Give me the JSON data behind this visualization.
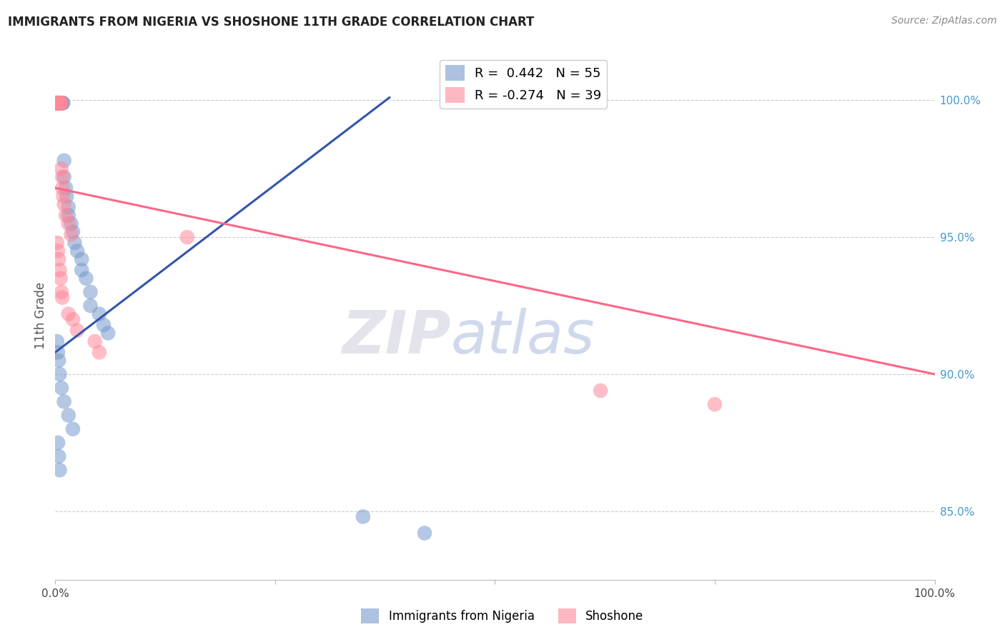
{
  "title": "IMMIGRANTS FROM NIGERIA VS SHOSHONE 11TH GRADE CORRELATION CHART",
  "source": "Source: ZipAtlas.com",
  "ylabel": "11th Grade",
  "ytick_labels": [
    "100.0%",
    "95.0%",
    "90.0%",
    "85.0%"
  ],
  "ytick_values": [
    1.0,
    0.95,
    0.9,
    0.85
  ],
  "xlim": [
    0.0,
    1.0
  ],
  "ylim": [
    0.825,
    1.018
  ],
  "legend_r1": "R =  0.442   N = 55",
  "legend_r2": "R = -0.274   N = 39",
  "blue_color": "#7799CC",
  "pink_color": "#FF8899",
  "blue_line_color": "#3355AA",
  "pink_line_color": "#FF6688",
  "nigeria_x": [
    0.001,
    0.001,
    0.001,
    0.001,
    0.002,
    0.002,
    0.002,
    0.002,
    0.003,
    0.003,
    0.003,
    0.003,
    0.003,
    0.004,
    0.004,
    0.005,
    0.005,
    0.006,
    0.006,
    0.007,
    0.007,
    0.008,
    0.008,
    0.009,
    0.01,
    0.01,
    0.012,
    0.013,
    0.015,
    0.015,
    0.018,
    0.02,
    0.022,
    0.025,
    0.03,
    0.03,
    0.035,
    0.04,
    0.04,
    0.05,
    0.055,
    0.06,
    0.002,
    0.003,
    0.004,
    0.005,
    0.007,
    0.01,
    0.015,
    0.02,
    0.003,
    0.004,
    0.005,
    0.35,
    0.42
  ],
  "nigeria_y": [
    0.999,
    0.999,
    0.999,
    0.999,
    0.999,
    0.999,
    0.999,
    0.999,
    0.999,
    0.999,
    0.999,
    0.999,
    0.999,
    0.999,
    0.999,
    0.999,
    0.999,
    0.999,
    0.999,
    0.999,
    0.999,
    0.999,
    0.999,
    0.999,
    0.978,
    0.972,
    0.968,
    0.965,
    0.961,
    0.958,
    0.955,
    0.952,
    0.948,
    0.945,
    0.942,
    0.938,
    0.935,
    0.93,
    0.925,
    0.922,
    0.918,
    0.915,
    0.912,
    0.908,
    0.905,
    0.9,
    0.895,
    0.89,
    0.885,
    0.88,
    0.875,
    0.87,
    0.865,
    0.848,
    0.842
  ],
  "shoshone_x": [
    0.001,
    0.001,
    0.001,
    0.002,
    0.002,
    0.002,
    0.003,
    0.003,
    0.003,
    0.004,
    0.004,
    0.005,
    0.005,
    0.006,
    0.006,
    0.007,
    0.007,
    0.008,
    0.008,
    0.009,
    0.01,
    0.012,
    0.015,
    0.018,
    0.002,
    0.003,
    0.004,
    0.005,
    0.006,
    0.007,
    0.008,
    0.015,
    0.02,
    0.025,
    0.045,
    0.05,
    0.15,
    0.62,
    0.75
  ],
  "shoshone_y": [
    0.999,
    0.999,
    0.999,
    0.999,
    0.999,
    0.999,
    0.999,
    0.999,
    0.999,
    0.999,
    0.999,
    0.999,
    0.999,
    0.999,
    0.999,
    0.999,
    0.975,
    0.972,
    0.968,
    0.965,
    0.962,
    0.958,
    0.955,
    0.951,
    0.948,
    0.945,
    0.942,
    0.938,
    0.935,
    0.93,
    0.928,
    0.922,
    0.92,
    0.916,
    0.912,
    0.908,
    0.95,
    0.894,
    0.889
  ],
  "blue_trend_x": [
    0.0,
    0.38
  ],
  "blue_trend_y": [
    0.908,
    1.001
  ],
  "pink_trend_x": [
    0.0,
    1.0
  ],
  "pink_trend_y": [
    0.968,
    0.9
  ],
  "watermark_zip": "ZIP",
  "watermark_atlas": "atlas",
  "grid_color": "#CCCCCC",
  "background_color": "#FFFFFF",
  "title_fontsize": 12,
  "axis_label_color": "#555555",
  "right_tick_color": "#4499CC",
  "source_color": "#888888"
}
